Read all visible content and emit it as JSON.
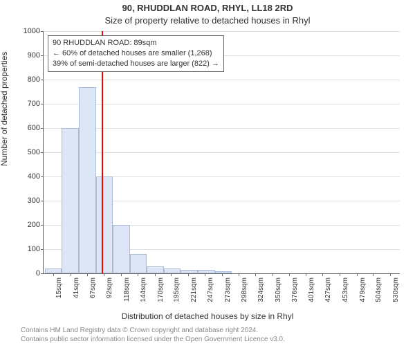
{
  "chart": {
    "type": "histogram",
    "title": "90, RHUDDLAN ROAD, RHYL, LL18 2RD",
    "subtitle": "Size of property relative to detached houses in Rhyl",
    "y_axis_label": "Number of detached properties",
    "x_axis_label": "Distribution of detached houses by size in Rhyl",
    "background_color": "#ffffff",
    "grid_color": "#e0e0e0",
    "axis_color": "#666666",
    "bar_fill": "#dce6f6",
    "bar_border": "#aab9d6",
    "marker_color": "#ff0000",
    "marker_value": 89,
    "ylim": [
      0,
      1000
    ],
    "ytick_step": 100,
    "x_ticks": [
      "15sqm",
      "41sqm",
      "67sqm",
      "92sqm",
      "118sqm",
      "144sqm",
      "170sqm",
      "195sqm",
      "221sqm",
      "247sqm",
      "273sqm",
      "298sqm",
      "324sqm",
      "350sqm",
      "376sqm",
      "401sqm",
      "427sqm",
      "453sqm",
      "479sqm",
      "504sqm",
      "530sqm"
    ],
    "x_tick_values": [
      15,
      41,
      67,
      92,
      118,
      144,
      170,
      195,
      221,
      247,
      273,
      298,
      324,
      350,
      376,
      401,
      427,
      453,
      479,
      504,
      530
    ],
    "x_range": [
      0,
      545
    ],
    "x_bin_width": 26,
    "bars": [
      {
        "x_start": 2,
        "value": 20
      },
      {
        "x_start": 28,
        "value": 600
      },
      {
        "x_start": 54,
        "value": 770
      },
      {
        "x_start": 80,
        "value": 400
      },
      {
        "x_start": 106,
        "value": 200
      },
      {
        "x_start": 132,
        "value": 80
      },
      {
        "x_start": 158,
        "value": 30
      },
      {
        "x_start": 184,
        "value": 20
      },
      {
        "x_start": 210,
        "value": 15
      },
      {
        "x_start": 236,
        "value": 15
      },
      {
        "x_start": 262,
        "value": 10
      }
    ],
    "annotation": {
      "line1": "90 RHUDDLAN ROAD: 89sqm",
      "line2": "← 60% of detached houses are smaller (1,268)",
      "line3": "39% of semi-detached houses are larger (822) →"
    },
    "footer_line1": "Contains HM Land Registry data © Crown copyright and database right 2024.",
    "footer_line2": "Contains public sector information licensed under the Open Government Licence v3.0."
  }
}
